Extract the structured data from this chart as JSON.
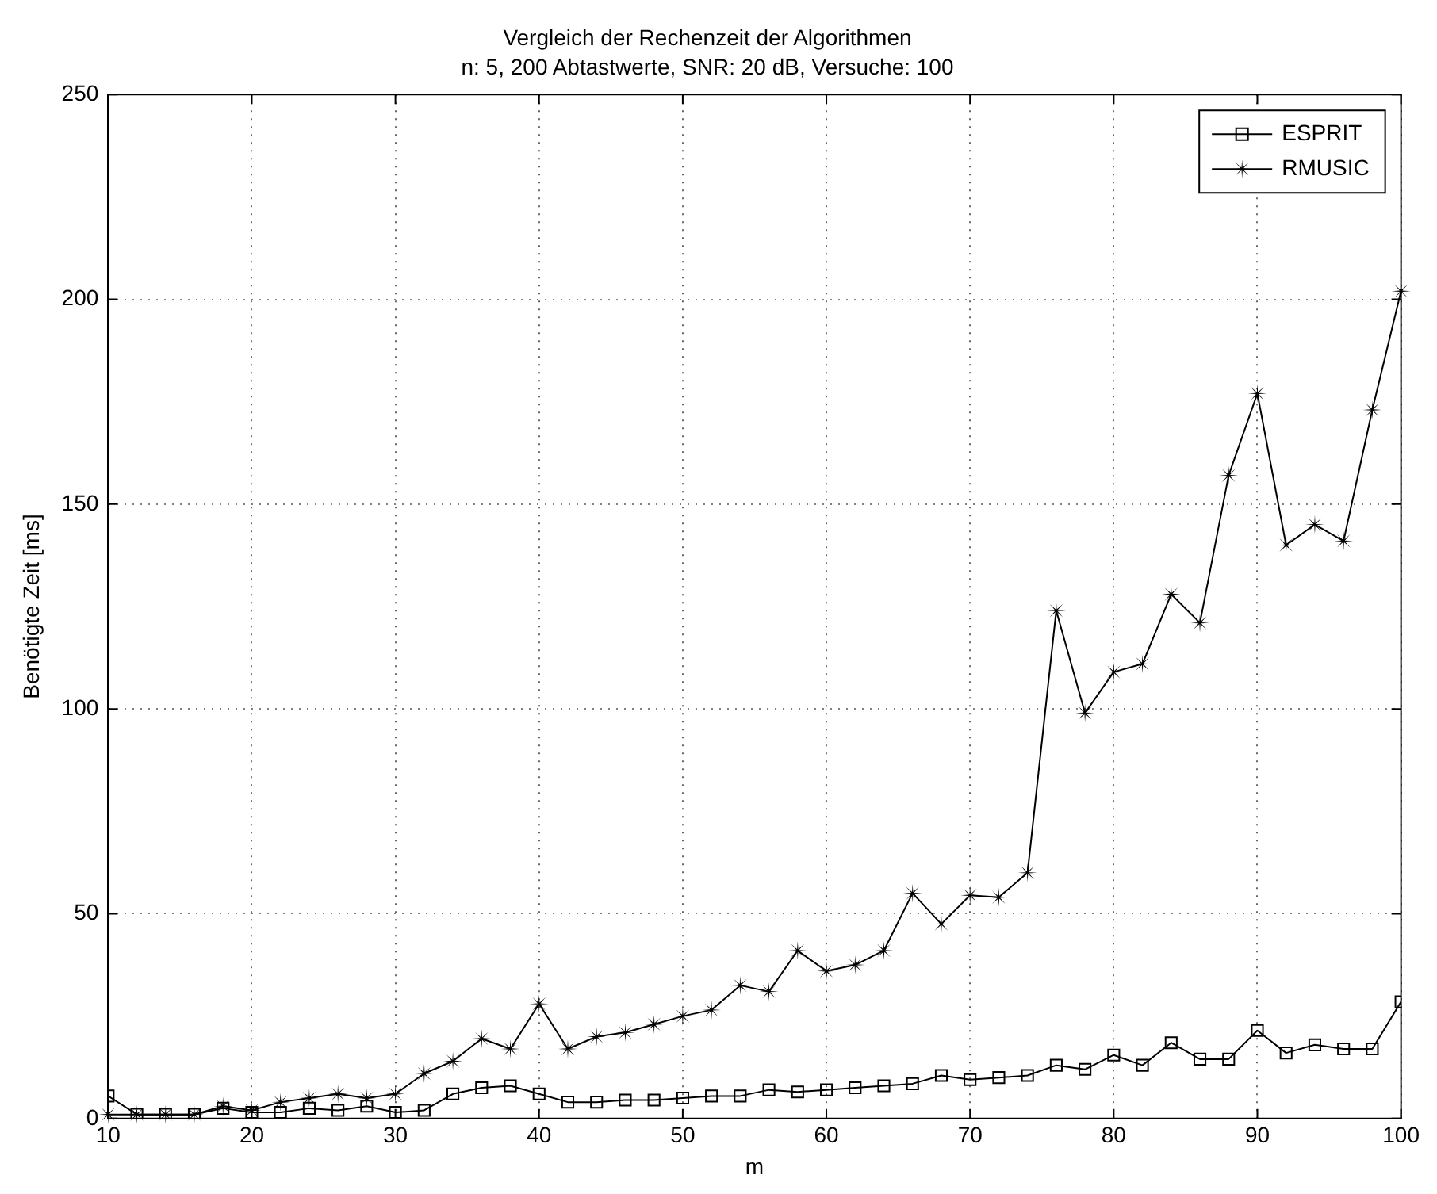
{
  "chart_data": {
    "type": "line",
    "title": "Vergleich der Rechenzeit der Algorithmen",
    "subtitle": "n: 5, 200 Abtastwerte, SNR: 20 dB, Versuche: 100",
    "xlabel": "m",
    "ylabel": "Benötigte Zeit [ms]",
    "x": [
      10,
      12,
      14,
      16,
      18,
      20,
      22,
      24,
      26,
      28,
      30,
      32,
      34,
      36,
      38,
      40,
      42,
      44,
      46,
      48,
      50,
      52,
      54,
      56,
      58,
      60,
      62,
      64,
      66,
      68,
      70,
      72,
      74,
      76,
      78,
      80,
      82,
      84,
      86,
      88,
      90,
      92,
      94,
      96,
      98,
      100
    ],
    "series": [
      {
        "name": "ESPRIT",
        "color": "#000000",
        "marker": "square",
        "values": [
          5.5,
          1,
          1,
          1,
          2.5,
          1.5,
          1.5,
          2.5,
          2,
          3,
          1.5,
          2,
          6,
          7.5,
          8,
          6,
          4,
          4,
          4.5,
          4.5,
          5,
          5.5,
          5.5,
          7,
          6.5,
          7,
          7.5,
          8,
          8.5,
          10.5,
          9.5,
          10,
          10.5,
          13,
          12,
          15.5,
          13,
          18.5,
          14.5,
          14.5,
          21.5,
          16,
          18,
          17,
          17,
          28.5
        ]
      },
      {
        "name": "RMUSIC",
        "color": "#000000",
        "marker": "star",
        "values": [
          1,
          1,
          1,
          1,
          3,
          2,
          4,
          5,
          6,
          5,
          6,
          11,
          14,
          19.5,
          17,
          28,
          17,
          20,
          21,
          23,
          25,
          26.5,
          32.5,
          31,
          41,
          36,
          37.5,
          41,
          55,
          47.5,
          54.5,
          54,
          60,
          124,
          99,
          109,
          111,
          128,
          121,
          157,
          177,
          140,
          145,
          141,
          173,
          202
        ]
      }
    ],
    "xlim": [
      10,
      100
    ],
    "xticks": [
      10,
      20,
      30,
      40,
      50,
      60,
      70,
      80,
      90,
      100
    ],
    "ylim": [
      0,
      250
    ],
    "yticks": [
      0,
      50,
      100,
      150,
      200,
      250
    ],
    "grid": true,
    "legend": "top right",
    "line_style": "solid"
  }
}
